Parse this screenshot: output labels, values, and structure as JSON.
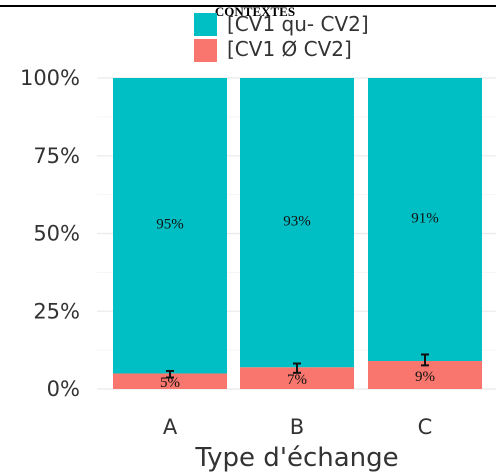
{
  "header": {
    "title": "CONTEXTES"
  },
  "chart_data": {
    "type": "bar",
    "stacked": true,
    "categories": [
      "A",
      "B",
      "C"
    ],
    "series": [
      {
        "name": "[CV1 qu- CV2]",
        "color": "#00BFC4",
        "values": [
          95,
          93,
          91
        ],
        "labels": [
          "95%",
          "93%",
          "91%"
        ]
      },
      {
        "name": "[CV1 Ø CV2]",
        "color": "#F8766D",
        "values": [
          5,
          7,
          9
        ],
        "labels": [
          "5%",
          "7%",
          "9%"
        ],
        "error": [
          [
            3.7,
            5.8
          ],
          [
            5.2,
            8.2
          ],
          [
            7.6,
            11.1
          ]
        ]
      }
    ],
    "xlabel": "Type d'échange",
    "ylabel": "",
    "ylim": [
      0,
      100
    ],
    "y_ticks": [
      "0%",
      "25%",
      "50%",
      "75%",
      "100%"
    ],
    "grid": true,
    "legend_position": "top"
  }
}
